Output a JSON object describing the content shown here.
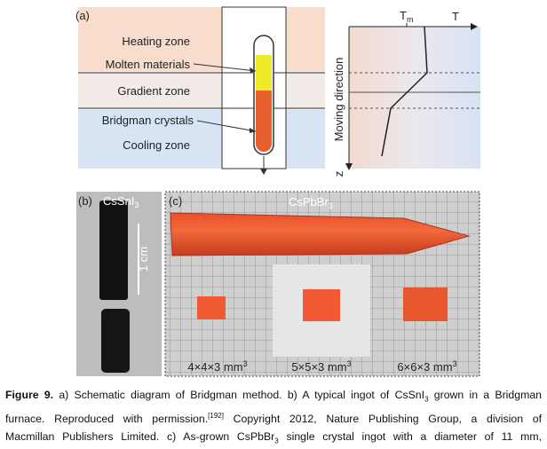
{
  "figure": {
    "panel_a": {
      "tag": "(a)",
      "zones": [
        "Heating zone",
        "Molten materials",
        "Gradient zone",
        "Bridgman crystals",
        "Cooling zone"
      ],
      "moving": "Moving direction",
      "tm": {
        "base": "T",
        "sub": "m"
      },
      "t": "T",
      "z": "z"
    },
    "panel_b": {
      "tag": "(b)",
      "material": {
        "base": "CsSnI",
        "sub": "3"
      },
      "scale": "1 cm"
    },
    "panel_c": {
      "tag": "(c)",
      "material": {
        "base": "CsPbBr",
        "sub": "3"
      },
      "sizes": [
        {
          "base": "4×4×3 mm",
          "sup": "3"
        },
        {
          "base": "5×5×3 mm",
          "sup": "3"
        },
        {
          "base": "6×6×3 mm",
          "sup": "3"
        }
      ]
    }
  },
  "caption": {
    "lines": [
      [
        {
          "text": "Figure 9.",
          "format": "bold"
        },
        {
          "text": " a) Schematic diagram of Bridgman method. b) A typical ingot of CsSnI"
        },
        {
          "text": "3",
          "format": "sub"
        },
        {
          "text": " grown in a Bridgman"
        }
      ],
      [
        {
          "text": "furnace. Reproduced with permission."
        },
        {
          "text": "[192]",
          "format": "sup"
        },
        {
          "text": " Copyright 2012, Nature Publishing Group, a division of"
        }
      ],
      [
        {
          "text": "Macmillan Publishers Limited. c) As-grown CsPbBr"
        },
        {
          "text": "3",
          "format": "sub"
        },
        {
          "text": " single crystal ingot with a diameter of 11 mm,"
        }
      ]
    ]
  }
}
